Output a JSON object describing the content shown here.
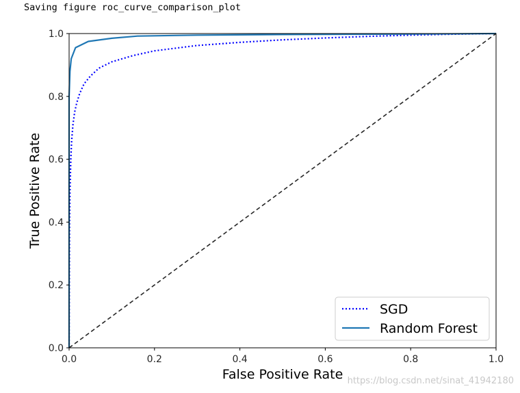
{
  "output_text": "Saving figure roc_curve_comparison_plot",
  "watermark": "https://blog.csdn.net/sinat_41942180",
  "colors": {
    "sgd": "#0000ff",
    "random_forest": "#1f77b4",
    "diagonal": "#262626",
    "axes": "#000000"
  },
  "chart_data": {
    "type": "line",
    "title": "",
    "xlabel": "False Positive Rate",
    "ylabel": "True Positive Rate",
    "xlim": [
      0,
      1
    ],
    "ylim": [
      0,
      1
    ],
    "xticks": [
      "0.0",
      "0.2",
      "0.4",
      "0.6",
      "0.8",
      "1.0"
    ],
    "yticks": [
      "0.0",
      "0.2",
      "0.4",
      "0.6",
      "0.8",
      "1.0"
    ],
    "grid": false,
    "legend_position": "lower right",
    "series": [
      {
        "name": "SGD",
        "style": "dotted",
        "x": [
          0,
          0.001,
          0.002,
          0.004,
          0.006,
          0.009,
          0.013,
          0.018,
          0.025,
          0.035,
          0.05,
          0.07,
          0.1,
          0.15,
          0.2,
          0.3,
          0.4,
          0.5,
          0.6,
          0.7,
          0.8,
          0.9,
          1.0
        ],
        "y": [
          0,
          0.4,
          0.5,
          0.6,
          0.66,
          0.71,
          0.75,
          0.78,
          0.81,
          0.84,
          0.865,
          0.89,
          0.91,
          0.93,
          0.945,
          0.962,
          0.972,
          0.98,
          0.986,
          0.991,
          0.995,
          0.998,
          1.0
        ]
      },
      {
        "name": "Random Forest",
        "style": "solid",
        "x": [
          0,
          0.0,
          0.002,
          0.005,
          0.015,
          0.045,
          0.1,
          0.16,
          0.3,
          0.5,
          0.7,
          0.9,
          1.0
        ],
        "y": [
          0,
          0.8,
          0.88,
          0.92,
          0.955,
          0.975,
          0.985,
          0.992,
          0.995,
          0.997,
          0.998,
          0.999,
          1.0
        ]
      },
      {
        "name": "",
        "style": "dashed",
        "x": [
          0,
          1
        ],
        "y": [
          0,
          1
        ]
      }
    ]
  }
}
